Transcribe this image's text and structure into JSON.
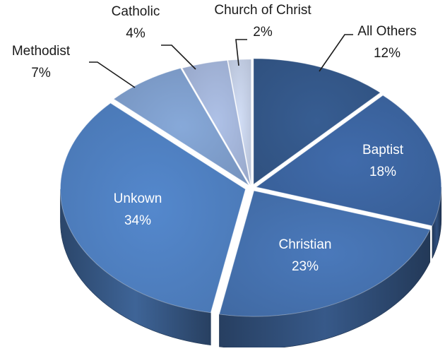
{
  "chart_data": {
    "type": "pie",
    "title": "",
    "categories": [
      "All Others",
      "Baptist",
      "Christian",
      "Unkown",
      "Methodist",
      "Catholic",
      "Church of Christ"
    ],
    "values": [
      12,
      18,
      23,
      34,
      7,
      4,
      2
    ],
    "value_labels": [
      "12%",
      "18%",
      "23%",
      "34%",
      "7%",
      "4%",
      "2%"
    ],
    "style": "3d-exploded",
    "legend": "none",
    "colors": [
      "#34588a",
      "#3c65a1",
      "#4672b0",
      "#4f80c1",
      "#7f9fcd",
      "#a4b6da",
      "#c6d1e8"
    ]
  }
}
